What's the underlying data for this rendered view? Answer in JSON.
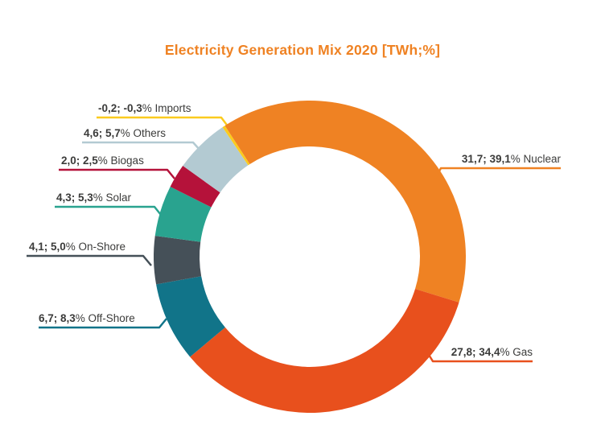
{
  "colors": {
    "title": "#EF8223",
    "text": "#3B3B3A",
    "background": "#FFFFFF"
  },
  "chart_data": {
    "type": "pie",
    "subtype": "donut",
    "title": "Electricity Generation Mix 2020 [TWh;%]",
    "unit": "TWh;%",
    "order": "clockwise",
    "start_angle_deg": -34,
    "legend_position": "callout-labels",
    "segments": [
      {
        "name": "Imports",
        "twh": -0.2,
        "pct": -0.3,
        "value_text": "-0,2; -0,3",
        "label_text": "% Imports",
        "color": "#FBCB1E"
      },
      {
        "name": "Nuclear",
        "twh": 31.7,
        "pct": 39.1,
        "value_text": "31,7; 39,1",
        "label_text": "% Nuclear",
        "color": "#EF8223"
      },
      {
        "name": "Gas",
        "twh": 27.8,
        "pct": 34.4,
        "value_text": "27,8; 34,4",
        "label_text": "% Gas",
        "color": "#E8501D"
      },
      {
        "name": "Off-Shore",
        "twh": 6.7,
        "pct": 8.3,
        "value_text": "6,7; 8,3",
        "label_text": "% Off-Shore",
        "color": "#117489"
      },
      {
        "name": "On-Shore",
        "twh": 4.1,
        "pct": 5.0,
        "value_text": "4,1; 5,0",
        "label_text": "% On-Shore",
        "color": "#455058"
      },
      {
        "name": "Solar",
        "twh": 4.3,
        "pct": 5.3,
        "value_text": "4,3; 5,3",
        "label_text": "% Solar",
        "color": "#29A38F"
      },
      {
        "name": "Biogas",
        "twh": 2.0,
        "pct": 2.5,
        "value_text": "2,0; 2,5",
        "label_text": "% Biogas",
        "color": "#B5123A"
      },
      {
        "name": "Others",
        "twh": 4.6,
        "pct": 5.7,
        "value_text": "4,6; 5,7",
        "label_text": "% Others",
        "color": "#B3CAD2"
      }
    ]
  }
}
